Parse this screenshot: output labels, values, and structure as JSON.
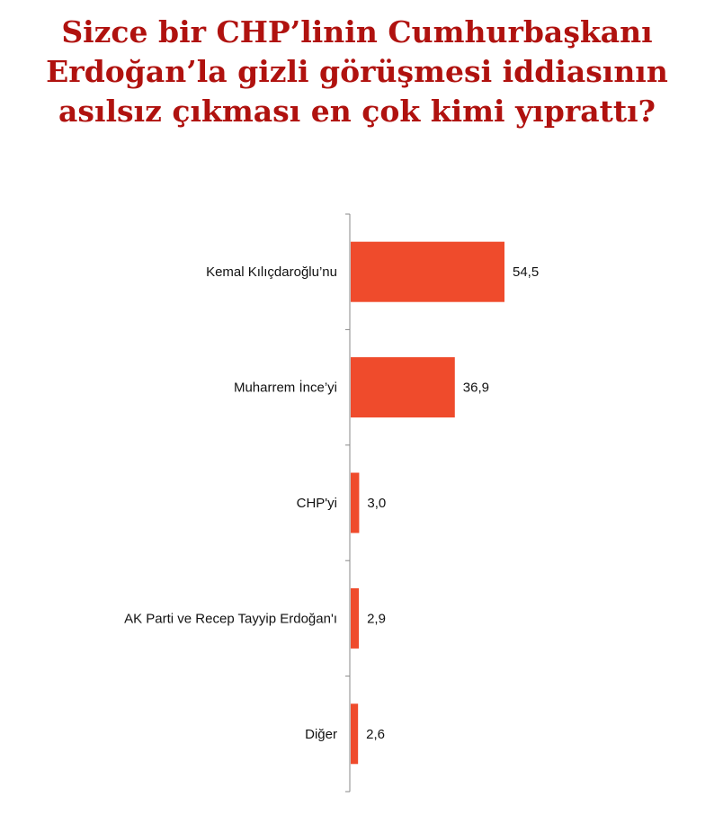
{
  "title_lines": [
    "Sizce bir CHP’linin Cumhurbaşkanı",
    "Erdoğan’la gizli görüşmesi iddiasının",
    "asılsız çıkması en çok kimi yıprattı?"
  ],
  "chart_data": {
    "type": "bar",
    "orientation": "horizontal",
    "title": "Sizce bir CHP’linin Cumhurbaşkanı Erdoğan’la gizli görüşmesi iddiasının asılsız çıkması en çok kimi yıprattı?",
    "categories": [
      "Kemal Kılıçdaroğlu’nu",
      "Muharrem İnce’yi",
      "CHP'yi",
      "AK Parti ve Recep Tayyip Erdoğan'ı",
      "Diğer"
    ],
    "values": [
      54.5,
      36.9,
      3.0,
      2.9,
      2.6
    ],
    "value_labels": [
      "54,5",
      "36,9",
      "3,0",
      "2,9",
      "2,6"
    ],
    "xlabel": "",
    "ylabel": "",
    "grid": false,
    "legend": "none",
    "bar_color": "#ef4b2c",
    "title_color": "#b0120f"
  }
}
